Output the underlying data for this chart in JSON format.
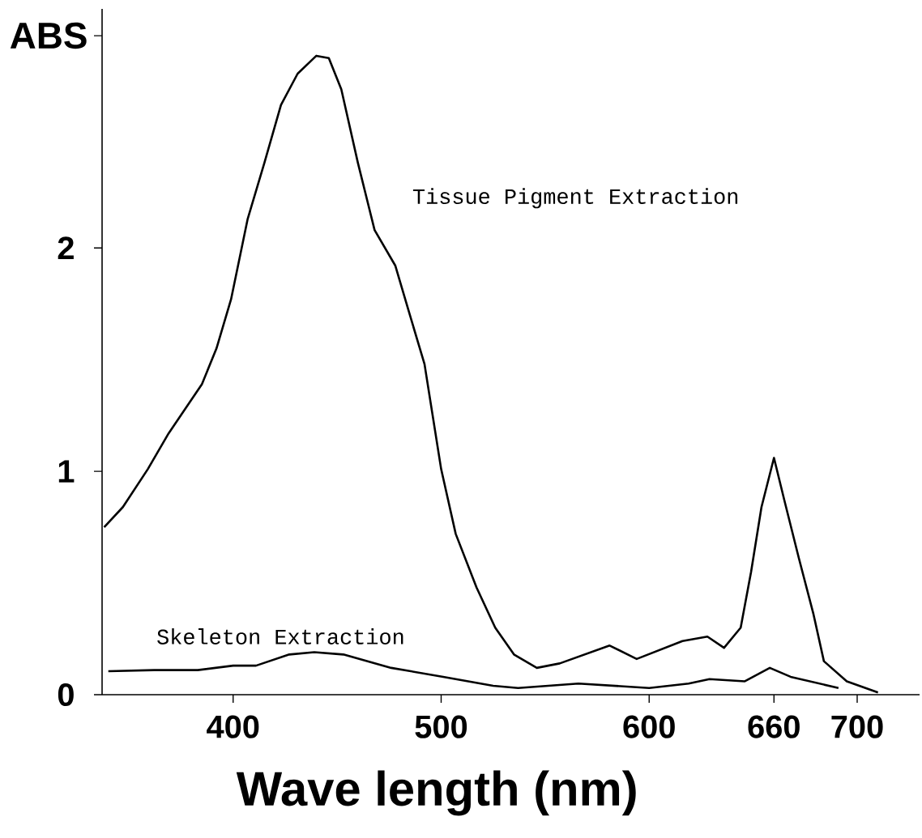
{
  "chart_data": {
    "type": "line",
    "xlabel": "Wave length (nm)",
    "ylabel": "ABS",
    "xlim": [
      337,
      730
    ],
    "ylim": [
      0,
      3.07
    ],
    "xticks": [
      400,
      500,
      600,
      660,
      700
    ],
    "yticks": [
      0,
      1,
      2,
      {
        "value": 2.95,
        "label": null
      }
    ],
    "series": [
      {
        "name": "Tissue Pigment Extraction",
        "color": "#000000",
        "x": [
          338,
          347,
          359,
          369,
          377,
          385,
          392,
          399,
          407,
          415,
          423,
          431,
          440,
          446,
          452,
          460,
          468,
          478,
          484,
          492,
          500,
          507,
          517,
          526,
          535,
          546,
          557,
          581,
          594,
          616,
          628,
          636,
          644,
          649,
          654,
          660,
          665,
          672,
          679,
          684,
          695,
          710
        ],
        "values": [
          0.75,
          0.84,
          1.01,
          1.17,
          1.28,
          1.39,
          1.55,
          1.77,
          2.13,
          2.38,
          2.64,
          2.78,
          2.86,
          2.85,
          2.71,
          2.38,
          2.08,
          1.92,
          1.73,
          1.48,
          1.01,
          0.72,
          0.48,
          0.3,
          0.18,
          0.12,
          0.14,
          0.22,
          0.16,
          0.24,
          0.26,
          0.21,
          0.3,
          0.55,
          0.84,
          1.06,
          0.87,
          0.61,
          0.36,
          0.15,
          0.06,
          0.01
        ]
      },
      {
        "name": "Skeleton Extraction",
        "color": "#000000",
        "x": [
          340,
          362,
          383,
          400,
          411,
          427,
          439,
          453,
          476,
          501,
          525,
          537,
          566,
          600,
          619,
          629,
          646,
          658,
          668,
          691
        ],
        "values": [
          0.105,
          0.11,
          0.11,
          0.13,
          0.13,
          0.18,
          0.19,
          0.18,
          0.12,
          0.08,
          0.04,
          0.03,
          0.05,
          0.03,
          0.05,
          0.07,
          0.06,
          0.12,
          0.08,
          0.03
        ]
      }
    ]
  }
}
